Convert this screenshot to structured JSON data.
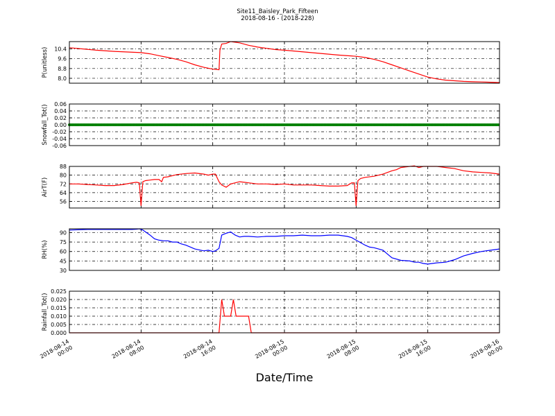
{
  "title_line1": "Site11_Baisley_Park_Fifteen",
  "title_line2": "2018-08-16 - (2018-228)",
  "xlabel": "Date/Time",
  "x_ticks": [
    {
      "t": 0,
      "line1": "2018-08-14",
      "line2": "00:00"
    },
    {
      "t": 8,
      "line1": "2018-08-14",
      "line2": "08:00"
    },
    {
      "t": 16,
      "line1": "2018-08-14",
      "line2": "16:00"
    },
    {
      "t": 24,
      "line1": "2018-08-15",
      "line2": "00:00"
    },
    {
      "t": 32,
      "line1": "2018-08-15",
      "line2": "08:00"
    },
    {
      "t": 40,
      "line1": "2018-08-15",
      "line2": "16:00"
    },
    {
      "t": 48,
      "line1": "2018-08-16",
      "line2": "00:00"
    }
  ],
  "chart_data": [
    {
      "type": "line",
      "ylabel": "P(unitless)",
      "color": "#ff0000",
      "ylim": [
        7.6,
        11.0
      ],
      "yticks": [
        8.0,
        8.8,
        9.6,
        10.4
      ],
      "tick_decimals": 1,
      "x": [
        0,
        3,
        5,
        8,
        9,
        10,
        11,
        12,
        13,
        14,
        15,
        16,
        16.7,
        16.8,
        17,
        17.5,
        18,
        19,
        20,
        21,
        22,
        23,
        24,
        27,
        30,
        32,
        33,
        34,
        35,
        36,
        37,
        38,
        39,
        40,
        41,
        42,
        43,
        44,
        45,
        46,
        47,
        48
      ],
      "y": [
        10.5,
        10.3,
        10.2,
        10.1,
        10.0,
        9.85,
        9.7,
        9.55,
        9.35,
        9.1,
        8.9,
        8.75,
        8.7,
        10.3,
        10.8,
        10.85,
        11.0,
        10.9,
        10.7,
        10.55,
        10.45,
        10.35,
        10.3,
        10.1,
        9.9,
        9.8,
        9.7,
        9.55,
        9.35,
        9.1,
        8.85,
        8.6,
        8.35,
        8.1,
        7.95,
        7.85,
        7.8,
        7.75,
        7.72,
        7.7,
        7.68,
        7.65
      ]
    },
    {
      "type": "line",
      "ylabel": "Snowfall_Tot()",
      "color": "#008000",
      "markers": true,
      "ylim": [
        -0.06,
        0.06
      ],
      "yticks": [
        -0.06,
        -0.04,
        -0.02,
        0.0,
        0.02,
        0.04,
        0.06
      ],
      "tick_decimals": 2,
      "x": [
        0,
        48
      ],
      "y": [
        0.0,
        0.0
      ]
    },
    {
      "type": "line",
      "ylabel": "AirT(F)",
      "color": "#ff0000",
      "ylim": [
        50,
        88
      ],
      "yticks": [
        56,
        64,
        72,
        80,
        88
      ],
      "tick_decimals": 0,
      "x": [
        0,
        1,
        2,
        3,
        4,
        5,
        6,
        7,
        7.5,
        7.8,
        8.0,
        8.2,
        8.5,
        9,
        9.5,
        10,
        10.3,
        10.5,
        11,
        12,
        13,
        14,
        15,
        15.5,
        16,
        16.3,
        16.7,
        17,
        17.5,
        18,
        18.5,
        19,
        19.5,
        20,
        21,
        22,
        23,
        24,
        25,
        26,
        27,
        28,
        29,
        30,
        31,
        31.5,
        31.8,
        32.0,
        32.2,
        32.5,
        33,
        34,
        35,
        36,
        36.5,
        37,
        37.5,
        38,
        38.5,
        39,
        39.5,
        40,
        41,
        42,
        43,
        44,
        45,
        46,
        47,
        48
      ],
      "y": [
        72,
        72,
        71.5,
        71,
        70.5,
        70.5,
        71.5,
        73,
        73.5,
        73,
        52,
        74,
        75,
        75.5,
        76,
        76,
        74,
        78,
        78.5,
        80.5,
        81.5,
        82,
        81,
        80,
        81,
        81,
        74,
        71,
        69,
        72,
        73,
        74,
        73.5,
        73,
        72,
        72,
        71.5,
        72,
        71,
        71,
        71,
        70.5,
        70,
        70,
        70.5,
        73,
        73,
        52,
        75,
        77,
        78,
        79,
        81,
        84,
        85,
        87,
        87.5,
        88,
        88.5,
        87,
        88,
        88,
        88,
        87,
        86,
        84,
        83,
        82.5,
        82,
        81
      ]
    },
    {
      "type": "line",
      "ylabel": "RH(%)",
      "color": "#0000ff",
      "ylim": [
        30,
        96
      ],
      "yticks": [
        30,
        45,
        60,
        75,
        90
      ],
      "tick_decimals": 0,
      "x": [
        0,
        2,
        4,
        6,
        7,
        7.5,
        7.8,
        8.2,
        9,
        9.5,
        10,
        10.5,
        11,
        11.5,
        12,
        12.5,
        13,
        14,
        15,
        15.5,
        16,
        16.3,
        16.7,
        17,
        17.5,
        18,
        18.5,
        19,
        19.5,
        20,
        21,
        22,
        23,
        24,
        25,
        26,
        27,
        28,
        29,
        30,
        31,
        31.5,
        32,
        32.5,
        33,
        33.5,
        34,
        34.5,
        35,
        35.5,
        36,
        37,
        38,
        38.5,
        39,
        39.5,
        40,
        40.5,
        41,
        42,
        43,
        44,
        45,
        46,
        47,
        48
      ],
      "y": [
        94,
        95,
        95,
        95,
        95,
        95.5,
        96,
        94,
        86,
        80,
        78,
        77,
        77,
        75,
        75,
        72,
        70,
        64,
        61,
        62,
        60,
        61,
        65,
        86,
        89,
        91,
        86,
        83,
        84,
        84,
        83,
        84,
        84,
        85,
        85,
        86,
        85,
        85,
        86,
        86,
        84,
        82,
        78,
        74,
        70,
        67,
        66,
        64,
        62,
        56,
        50,
        46,
        45,
        43,
        43,
        41,
        40,
        41,
        42,
        43,
        47,
        53,
        57,
        60,
        62,
        64
      ]
    },
    {
      "type": "line",
      "ylabel": "Rainfall_Tot()",
      "color": "#ff0000",
      "ylim": [
        0.0,
        0.025
      ],
      "yticks": [
        0.0,
        0.005,
        0.01,
        0.015,
        0.02,
        0.025
      ],
      "tick_decimals": 3,
      "x": [
        0,
        16.7,
        17.0,
        17.3,
        17.5,
        18.0,
        18.3,
        18.6,
        19.0,
        19.5,
        20.0,
        20.3,
        48
      ],
      "y": [
        0.0,
        0.0,
        0.02,
        0.01,
        0.01,
        0.01,
        0.02,
        0.01,
        0.01,
        0.01,
        0.01,
        0.0,
        0.0
      ]
    }
  ]
}
